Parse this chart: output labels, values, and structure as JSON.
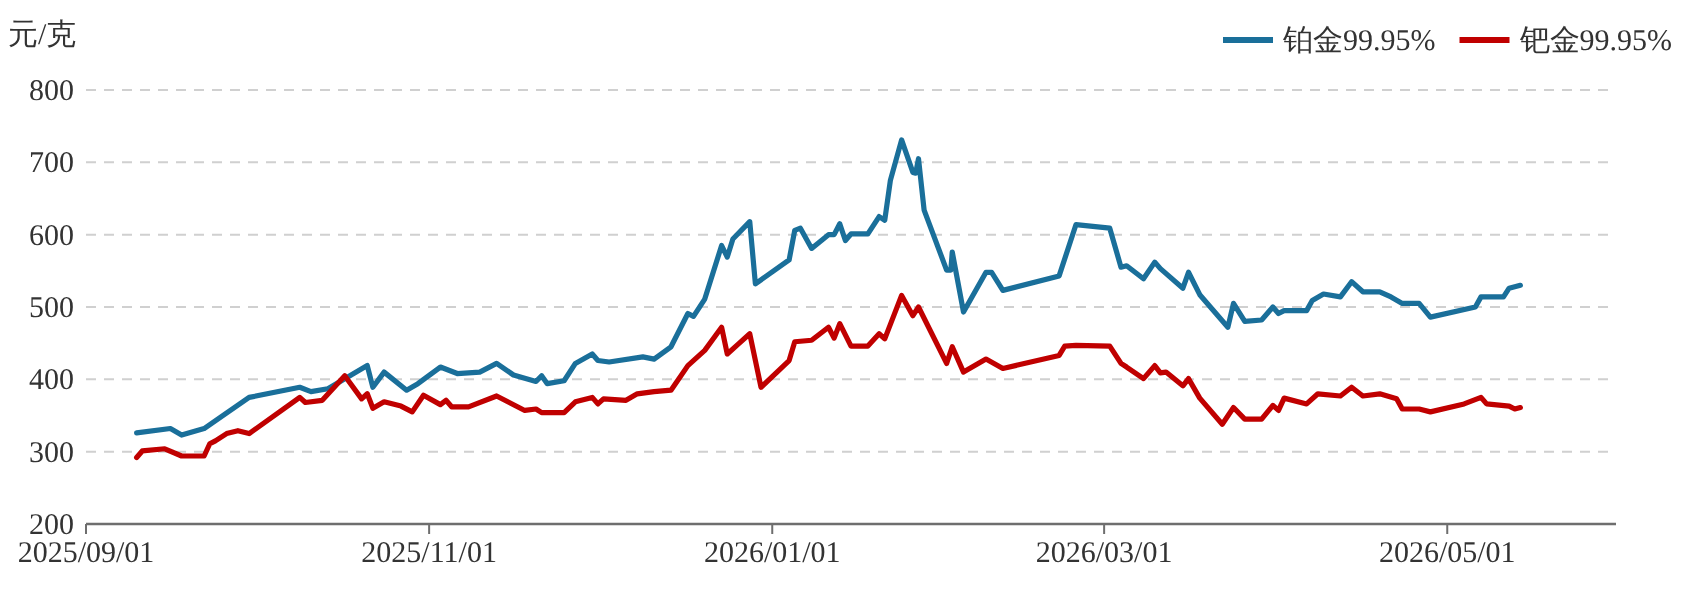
{
  "chart_data": {
    "type": "line",
    "ylabel": "元/克",
    "xlim": [
      "2025-09-01",
      "2026-05-31"
    ],
    "xticks": [
      {
        "value": "2025-09-01",
        "label": "2025/09/01"
      },
      {
        "value": "2025-11-01",
        "label": "2025/11/01"
      },
      {
        "value": "2026-01-01",
        "label": "2026/01/01"
      },
      {
        "value": "2026-03-01",
        "label": "2026/03/01"
      },
      {
        "value": "2026-05-01",
        "label": "2026/05/01"
      }
    ],
    "ylim": [
      200,
      800
    ],
    "yticks": [
      200,
      300,
      400,
      500,
      600,
      700,
      800
    ],
    "grid": "y",
    "legend": "top right",
    "marker": "none",
    "line_style": "solid",
    "series": [
      {
        "name": "铂金99.95%",
        "color": "#1a6f9a",
        "x": [
          "2025-09-10",
          "2025-09-16",
          "2025-09-18",
          "2025-09-22",
          "2025-09-25",
          "2025-09-30",
          "2025-10-09",
          "2025-10-11",
          "2025-10-14",
          "2025-10-21",
          "2025-10-22",
          "2025-10-24",
          "2025-10-28",
          "2025-10-30",
          "2025-11-03",
          "2025-11-06",
          "2025-11-10",
          "2025-11-13",
          "2025-11-16",
          "2025-11-20",
          "2025-11-21",
          "2025-11-22",
          "2025-11-25",
          "2025-11-27",
          "2025-11-30",
          "2025-12-01",
          "2025-12-03",
          "2025-12-09",
          "2025-12-11",
          "2025-12-14",
          "2025-12-17",
          "2025-12-18",
          "2025-12-20",
          "2025-12-23",
          "2025-12-24",
          "2025-12-25",
          "2025-12-28",
          "2025-12-29",
          "2026-01-04",
          "2026-01-05",
          "2026-01-06",
          "2026-01-08",
          "2026-01-11",
          "2026-01-12",
          "2026-01-13",
          "2026-01-14",
          "2026-01-15",
          "2026-01-18",
          "2026-01-20",
          "2026-01-21",
          "2026-01-22",
          "2026-01-24",
          "2026-01-26",
          "2026-01-26T12:00",
          "2026-01-27",
          "2026-01-28",
          "2026-02-01",
          "2026-02-01T18:00",
          "2026-02-02",
          "2026-02-04",
          "2026-02-08",
          "2026-02-09",
          "2026-02-11",
          "2026-02-21",
          "2026-02-24",
          "2026-03-02",
          "2026-03-04",
          "2026-03-05",
          "2026-03-08",
          "2026-03-10",
          "2026-03-11",
          "2026-03-15",
          "2026-03-16",
          "2026-03-18",
          "2026-03-23",
          "2026-03-24",
          "2026-03-26",
          "2026-03-29",
          "2026-03-31",
          "2026-04-01",
          "2026-04-02",
          "2026-04-06",
          "2026-04-07",
          "2026-04-09",
          "2026-04-12",
          "2026-04-14",
          "2026-04-16",
          "2026-04-19",
          "2026-04-21",
          "2026-04-23",
          "2026-04-26",
          "2026-04-28",
          "2026-05-06",
          "2026-05-07",
          "2026-05-11",
          "2026-05-12",
          "2026-05-14"
        ],
        "values": [
          326,
          332,
          323,
          332,
          348,
          375,
          389,
          383,
          387,
          419,
          389,
          410,
          385,
          394,
          417,
          408,
          410,
          422,
          406,
          397,
          405,
          394,
          398,
          422,
          435,
          426,
          424,
          431,
          428,
          445,
          491,
          487,
          511,
          585,
          569,
          594,
          618,
          532,
          565,
          606,
          609,
          581,
          600,
          600,
          615,
          592,
          601,
          601,
          625,
          620,
          675,
          731,
          686,
          685,
          705,
          634,
          551,
          551,
          576,
          493,
          548,
          548,
          523,
          543,
          614,
          609,
          555,
          557,
          539,
          562,
          553,
          526,
          548,
          517,
          472,
          505,
          480,
          482,
          500,
          491,
          495,
          495,
          509,
          518,
          514,
          535,
          521,
          521,
          514,
          505,
          505,
          486,
          500,
          514,
          514,
          526,
          530
        ]
      },
      {
        "name": "钯金99.95%",
        "color": "#c00000",
        "x": [
          "2025-09-10",
          "2025-09-11",
          "2025-09-15",
          "2025-09-18",
          "2025-09-22",
          "2025-09-23",
          "2025-09-24",
          "2025-09-26",
          "2025-09-28",
          "2025-09-30",
          "2025-10-09",
          "2025-10-10",
          "2025-10-13",
          "2025-10-17",
          "2025-10-20",
          "2025-10-21",
          "2025-10-22",
          "2025-10-24",
          "2025-10-27",
          "2025-10-29",
          "2025-10-31",
          "2025-11-03",
          "2025-11-04",
          "2025-11-05",
          "2025-11-08",
          "2025-11-13",
          "2025-11-18",
          "2025-11-20",
          "2025-11-21",
          "2025-11-25",
          "2025-11-27",
          "2025-11-30",
          "2025-12-01",
          "2025-12-02",
          "2025-12-06",
          "2025-12-08",
          "2025-12-11",
          "2025-12-14",
          "2025-12-17",
          "2025-12-20",
          "2025-12-23",
          "2025-12-24",
          "2025-12-26",
          "2025-12-28",
          "2025-12-30",
          "2026-01-04",
          "2026-01-05",
          "2026-01-08",
          "2026-01-11",
          "2026-01-12",
          "2026-01-13",
          "2026-01-15",
          "2026-01-18",
          "2026-01-20",
          "2026-01-21",
          "2026-01-24",
          "2026-01-26",
          "2026-01-27",
          "2026-02-01",
          "2026-02-02",
          "2026-02-04",
          "2026-02-08",
          "2026-02-11",
          "2026-02-21",
          "2026-02-22",
          "2026-02-24",
          "2026-03-02",
          "2026-03-04",
          "2026-03-05",
          "2026-03-08",
          "2026-03-10",
          "2026-03-11",
          "2026-03-12",
          "2026-03-15",
          "2026-03-16",
          "2026-03-18",
          "2026-03-22",
          "2026-03-24",
          "2026-03-26",
          "2026-03-29",
          "2026-03-31",
          "2026-04-01",
          "2026-04-02",
          "2026-04-06",
          "2026-04-08",
          "2026-04-12",
          "2026-04-14",
          "2026-04-16",
          "2026-04-19",
          "2026-04-22",
          "2026-04-23",
          "2026-04-26",
          "2026-04-28",
          "2026-05-04",
          "2026-05-07",
          "2026-05-08",
          "2026-05-12",
          "2026-05-13",
          "2026-05-14"
        ],
        "values": [
          292,
          301,
          304,
          294,
          294,
          311,
          315,
          325,
          329,
          325,
          375,
          368,
          371,
          405,
          373,
          380,
          360,
          369,
          363,
          355,
          378,
          365,
          371,
          362,
          362,
          377,
          357,
          359,
          354,
          354,
          369,
          375,
          366,
          373,
          371,
          380,
          383,
          385,
          419,
          440,
          472,
          435,
          449,
          463,
          389,
          426,
          452,
          454,
          472,
          457,
          477,
          446,
          446,
          463,
          456,
          516,
          488,
          500,
          422,
          445,
          410,
          428,
          415,
          433,
          446,
          447,
          446,
          422,
          417,
          401,
          419,
          409,
          410,
          391,
          401,
          374,
          338,
          361,
          345,
          345,
          364,
          357,
          374,
          366,
          380,
          377,
          389,
          377,
          380,
          373,
          359,
          359,
          355,
          366,
          375,
          366,
          363,
          359,
          361
        ]
      }
    ]
  }
}
